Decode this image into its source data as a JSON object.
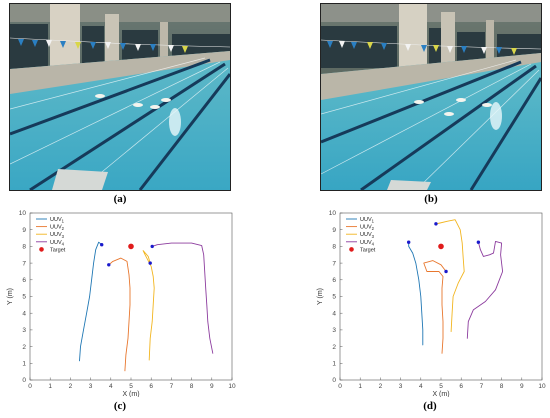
{
  "panels": {
    "a": "(a)",
    "b": "(b)",
    "c": "(c)",
    "d": "(d)"
  },
  "colors": {
    "uuv1": "#1f77b4",
    "uuv2": "#e8772e",
    "uuv3": "#f2b51f",
    "uuv4": "#8c3c9e",
    "target": "#e01b1b",
    "start_marker": "#1a1acc",
    "water": "#4fb8cf"
  },
  "chart_data": [
    {
      "type": "line",
      "panel": "(c)",
      "xlabel": "X (m)",
      "ylabel": "Y (m)",
      "xlim": [
        0,
        10
      ],
      "ylim": [
        0,
        10
      ],
      "xticks": [
        0,
        1,
        2,
        3,
        4,
        5,
        6,
        7,
        8,
        9,
        10
      ],
      "yticks": [
        0,
        1,
        2,
        3,
        4,
        5,
        6,
        7,
        8,
        9,
        10
      ],
      "legend_position": "top-left",
      "target": {
        "label": "Target",
        "x": 5.0,
        "y": 8.0
      },
      "series": [
        {
          "name": "UUV1",
          "label_base": "UUV",
          "label_sub": "1",
          "color_key": "uuv1",
          "start": [
            3.55,
            8.1
          ],
          "points": [
            [
              2.45,
              1.15
            ],
            [
              2.5,
              2.0
            ],
            [
              2.65,
              3.0
            ],
            [
              2.8,
              4.0
            ],
            [
              2.95,
              5.0
            ],
            [
              3.05,
              6.0
            ],
            [
              3.15,
              7.0
            ],
            [
              3.25,
              7.8
            ],
            [
              3.4,
              8.25
            ],
            [
              3.55,
              8.1
            ]
          ]
        },
        {
          "name": "UUV2",
          "label_base": "UUV",
          "label_sub": "2",
          "color_key": "uuv2",
          "start": [
            3.9,
            6.9
          ],
          "points": [
            [
              4.7,
              0.55
            ],
            [
              4.75,
              1.5
            ],
            [
              4.85,
              2.5
            ],
            [
              4.9,
              3.5
            ],
            [
              4.95,
              4.5
            ],
            [
              4.95,
              5.5
            ],
            [
              4.9,
              6.3
            ],
            [
              4.8,
              7.1
            ],
            [
              4.5,
              7.3
            ],
            [
              4.1,
              7.1
            ],
            [
              3.9,
              6.9
            ]
          ]
        },
        {
          "name": "UUV3",
          "label_base": "UUV",
          "label_sub": "3",
          "color_key": "uuv3",
          "start": [
            5.95,
            7.0
          ],
          "points": [
            [
              5.9,
              1.2
            ],
            [
              5.95,
              2.5
            ],
            [
              6.05,
              3.5
            ],
            [
              6.1,
              4.5
            ],
            [
              6.15,
              5.5
            ],
            [
              6.1,
              6.2
            ],
            [
              6.0,
              6.8
            ],
            [
              5.7,
              7.5
            ],
            [
              5.6,
              7.75
            ],
            [
              5.85,
              7.4
            ],
            [
              5.95,
              7.0
            ]
          ]
        },
        {
          "name": "UUV4",
          "label_base": "UUV",
          "label_sub": "4",
          "color_key": "uuv4",
          "start": [
            6.05,
            8.0
          ],
          "points": [
            [
              9.05,
              1.6
            ],
            [
              8.9,
              2.5
            ],
            [
              8.8,
              3.5
            ],
            [
              8.75,
              4.5
            ],
            [
              8.7,
              5.5
            ],
            [
              8.65,
              6.5
            ],
            [
              8.6,
              7.5
            ],
            [
              8.5,
              8.05
            ],
            [
              8.0,
              8.2
            ],
            [
              7.0,
              8.2
            ],
            [
              6.3,
              8.1
            ],
            [
              6.05,
              8.0
            ]
          ]
        }
      ]
    },
    {
      "type": "line",
      "panel": "(d)",
      "xlabel": "X (m)",
      "ylabel": "Y (m)",
      "xlim": [
        0,
        10
      ],
      "ylim": [
        0,
        10
      ],
      "xticks": [
        0,
        1,
        2,
        3,
        4,
        5,
        6,
        7,
        8,
        9,
        10
      ],
      "yticks": [
        0,
        1,
        2,
        3,
        4,
        5,
        6,
        7,
        8,
        9,
        10
      ],
      "legend_position": "top-left",
      "target": {
        "label": "Target",
        "x": 5.0,
        "y": 8.0
      },
      "series": [
        {
          "name": "UUV1",
          "label_base": "UUV",
          "label_sub": "1",
          "color_key": "uuv1",
          "start": [
            3.4,
            8.25
          ],
          "points": [
            [
              4.1,
              2.1
            ],
            [
              4.1,
              3.0
            ],
            [
              4.05,
              4.0
            ],
            [
              4.0,
              5.0
            ],
            [
              3.9,
              6.0
            ],
            [
              3.75,
              7.0
            ],
            [
              3.6,
              7.6
            ],
            [
              3.4,
              8.0
            ],
            [
              3.4,
              8.25
            ]
          ]
        },
        {
          "name": "UUV2",
          "label_base": "UUV",
          "label_sub": "2",
          "color_key": "uuv2",
          "start": [
            5.25,
            6.5
          ],
          "points": [
            [
              5.05,
              1.6
            ],
            [
              5.1,
              2.5
            ],
            [
              5.1,
              3.5
            ],
            [
              5.05,
              4.5
            ],
            [
              5.05,
              5.5
            ],
            [
              5.1,
              6.2
            ],
            [
              4.9,
              6.5
            ],
            [
              4.3,
              6.5
            ],
            [
              4.15,
              7.0
            ],
            [
              4.6,
              7.15
            ],
            [
              5.0,
              6.9
            ],
            [
              5.25,
              6.5
            ]
          ]
        },
        {
          "name": "UUV3",
          "label_base": "UUV",
          "label_sub": "3",
          "color_key": "uuv3",
          "start": [
            4.75,
            9.35
          ],
          "points": [
            [
              5.5,
              2.9
            ],
            [
              5.55,
              4.0
            ],
            [
              5.6,
              5.0
            ],
            [
              5.85,
              5.8
            ],
            [
              6.15,
              6.5
            ],
            [
              6.1,
              7.3
            ],
            [
              6.05,
              8.2
            ],
            [
              5.95,
              9.0
            ],
            [
              5.7,
              9.6
            ],
            [
              5.3,
              9.5
            ],
            [
              4.95,
              9.4
            ],
            [
              4.75,
              9.35
            ]
          ]
        },
        {
          "name": "UUV4",
          "label_base": "UUV",
          "label_sub": "4",
          "color_key": "uuv4",
          "start": [
            6.85,
            8.25
          ],
          "points": [
            [
              6.3,
              2.5
            ],
            [
              6.35,
              3.5
            ],
            [
              6.6,
              4.2
            ],
            [
              7.2,
              4.7
            ],
            [
              7.7,
              5.4
            ],
            [
              8.05,
              6.5
            ],
            [
              7.95,
              7.5
            ],
            [
              8.0,
              8.2
            ],
            [
              7.7,
              8.3
            ],
            [
              7.6,
              7.6
            ],
            [
              7.4,
              7.5
            ],
            [
              7.1,
              7.4
            ],
            [
              6.95,
              7.8
            ],
            [
              6.85,
              8.25
            ]
          ]
        }
      ]
    }
  ]
}
